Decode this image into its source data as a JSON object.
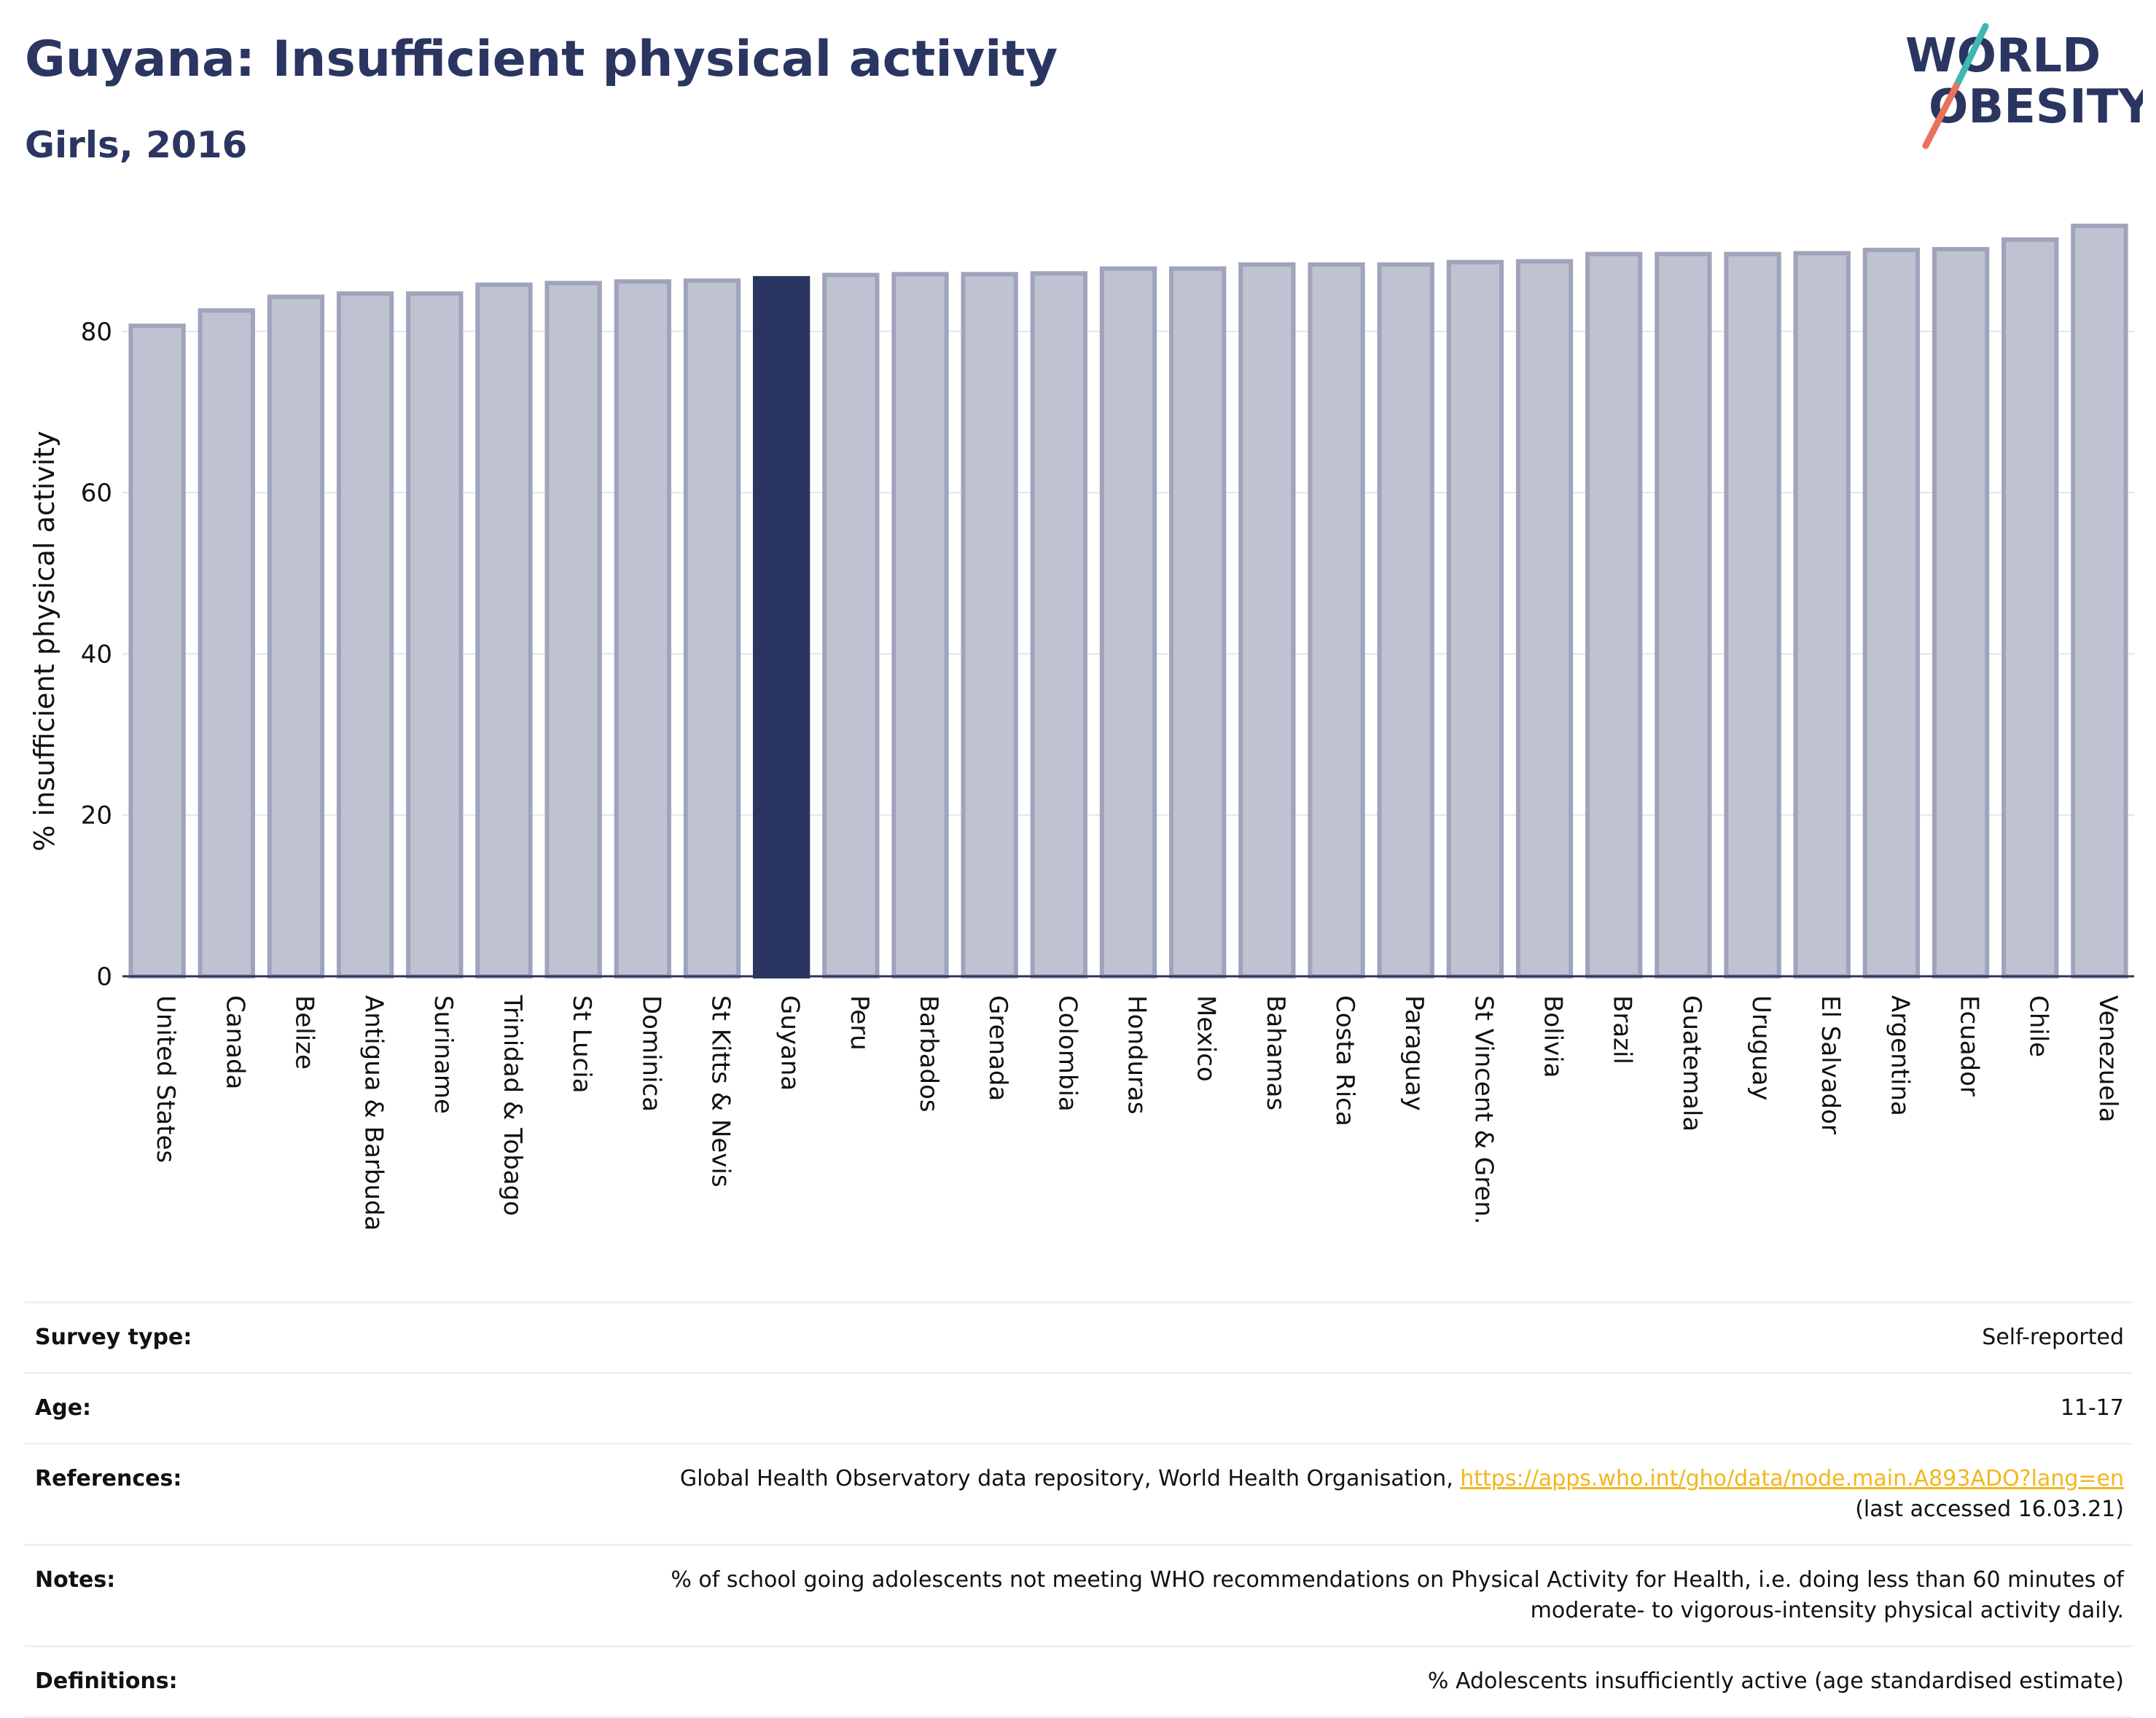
{
  "header": {
    "title": "Guyana: Insufficient physical activity",
    "subtitle": "Girls, 2016"
  },
  "logo": {
    "line1": "WORLD",
    "line2": "OBESITY",
    "colors": {
      "text": "#2b3561",
      "slash_teal": "#3fb8af",
      "slash_red": "#e8725c"
    }
  },
  "colors": {
    "bar_fill": "#bfc2d0",
    "bar_stroke": "#9fa4bb",
    "highlight_fill": "#2b3561",
    "axis": "#2b3561",
    "grid": "#e3e5ee"
  },
  "chart_data": {
    "type": "bar",
    "title": "",
    "xlabel": "",
    "ylabel": "% insufficient physical activity",
    "ylim": [
      0,
      94
    ],
    "yticks": [
      0,
      20,
      40,
      60,
      80
    ],
    "grid": true,
    "highlight": "Guyana",
    "categories": [
      "United States",
      "Canada",
      "Belize",
      "Antigua & Barbuda",
      "Suriname",
      "Trinidad & Tobago",
      "St Lucia",
      "Dominica",
      "St Kitts & Nevis",
      "Guyana",
      "Peru",
      "Barbados",
      "Grenada",
      "Colombia",
      "Honduras",
      "Mexico",
      "Bahamas",
      "Costa Rica",
      "Paraguay",
      "St Vincent & Gren.",
      "Bolivia",
      "Brazil",
      "Guatemala",
      "Uruguay",
      "El Salvador",
      "Argentina",
      "Ecuador",
      "Chile",
      "Venezuela"
    ],
    "values": [
      80.7,
      82.6,
      84.3,
      84.7,
      84.7,
      85.8,
      86.0,
      86.2,
      86.3,
      86.6,
      87.0,
      87.1,
      87.1,
      87.2,
      87.8,
      87.8,
      88.3,
      88.3,
      88.3,
      88.6,
      88.7,
      89.6,
      89.6,
      89.6,
      89.7,
      90.1,
      90.2,
      91.4,
      93.1
    ]
  },
  "info": {
    "survey_type": {
      "label": "Survey type:",
      "value": "Self-reported"
    },
    "age": {
      "label": "Age:",
      "value": "11-17"
    },
    "references": {
      "label": "References:",
      "text": "Global Health Observatory data repository, World Health Organisation, ",
      "link": "https://apps.who.int/gho/data/node.main.A893ADO?lang=en",
      "accessed": "(last accessed 16.03.21)"
    },
    "notes": {
      "label": "Notes:",
      "line1": "% of school going adolescents not meeting WHO recommendations on Physical Activity for Health, i.e. doing less than 60 minutes of",
      "line2": "moderate- to vigorous-intensity physical activity daily."
    },
    "definitions": {
      "label": "Definitions:",
      "value": "% Adolescents insufficiently active (age standardised estimate)"
    }
  }
}
